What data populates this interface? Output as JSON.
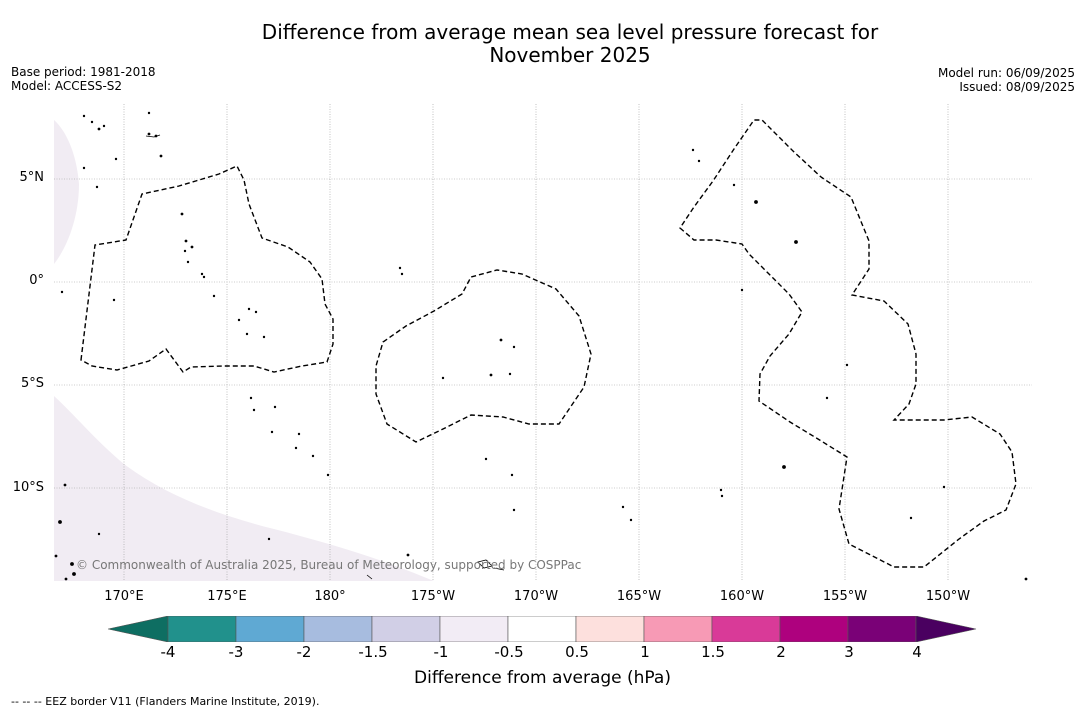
{
  "title": {
    "line1": "Difference from average mean sea level pressure forecast for",
    "line2": "November 2025"
  },
  "meta": {
    "base_period": "Base period: 1981-2018",
    "model": "Model: ACCESS-S2",
    "model_run": "Model run: 06/09/2025",
    "issued": "Issued: 08/09/2025"
  },
  "map": {
    "lat_labels": [
      "5°N",
      "0°",
      "5°S",
      "10°S"
    ],
    "lon_labels": [
      "170°E",
      "175°E",
      "180°",
      "175°W",
      "170°W",
      "165°W",
      "160°W",
      "155°W",
      "150°W"
    ],
    "copyright": "© Commonwealth of Australia 2025, Bureau of Meteorology, supported by COSPPac",
    "fill_color": "#f1ecf3",
    "coast_color": "#000000"
  },
  "colorbar": {
    "ticks": [
      "-4",
      "-3",
      "-2",
      "-1.5",
      "-1",
      "-0.5",
      "0.5",
      "1",
      "1.5",
      "2",
      "3",
      "4"
    ],
    "colors": [
      "#0e6e62",
      "#21918c",
      "#5fa9d3",
      "#a7bcdf",
      "#d1cfe6",
      "#f2ecf5",
      "#ffffff",
      "#fde0dd",
      "#f79ab5",
      "#d93a98",
      "#ae017e",
      "#7a0177",
      "#4a0060"
    ],
    "label": "Difference from average (hPa)"
  },
  "footer": "--  --  -- EEZ border V11 (Flanders Marine Institute, 2019)."
}
